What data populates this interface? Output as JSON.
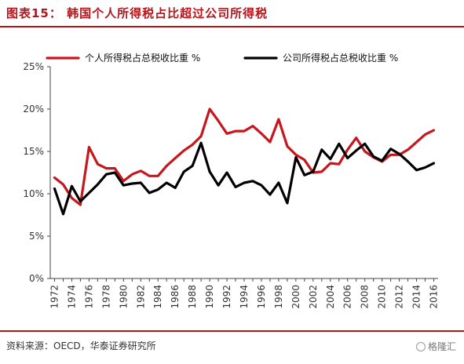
{
  "header": {
    "title": "图表15：  韩国个人所得税占比超过公司所得税"
  },
  "footer": {
    "source": "资料来源：OECD，华泰证券研究所",
    "watermark": "格隆汇"
  },
  "colors": {
    "accent": "#b3151b",
    "series_personal": "#c8161d",
    "series_corporate": "#000000"
  },
  "chart_data": {
    "type": "line",
    "title": "",
    "xlabel": "",
    "ylabel": "",
    "x": [
      1972,
      1973,
      1974,
      1975,
      1976,
      1977,
      1978,
      1979,
      1980,
      1981,
      1982,
      1983,
      1984,
      1985,
      1986,
      1987,
      1988,
      1989,
      1990,
      1991,
      1992,
      1993,
      1994,
      1995,
      1996,
      1997,
      1998,
      1999,
      2000,
      2001,
      2002,
      2003,
      2004,
      2005,
      2006,
      2007,
      2008,
      2009,
      2010,
      2011,
      2012,
      2013,
      2014,
      2015,
      2016
    ],
    "x_tick_labels": [
      "1972",
      "1974",
      "1976",
      "1978",
      "1980",
      "1982",
      "1984",
      "1986",
      "1988",
      "1990",
      "1992",
      "1994",
      "1996",
      "1998",
      "2000",
      "2002",
      "2004",
      "2006",
      "2008",
      "2010",
      "2012",
      "2014",
      "2016"
    ],
    "y_tick_labels": [
      "0%",
      "5%",
      "10%",
      "15%",
      "20%",
      "25%"
    ],
    "ylim": [
      0,
      25
    ],
    "xlim": [
      1971.5,
      2016.5
    ],
    "grid": false,
    "legend_position": "top",
    "series": [
      {
        "name": "个人所得税占总税收比重  %",
        "color": "#c8161d",
        "values": [
          11.9,
          11.1,
          9.5,
          8.7,
          15.5,
          13.5,
          13.0,
          13.0,
          11.5,
          12.3,
          12.7,
          12.1,
          12.1,
          13.3,
          14.2,
          15.1,
          15.8,
          16.8,
          20.0,
          18.6,
          17.1,
          17.4,
          17.4,
          18.0,
          17.1,
          16.1,
          18.8,
          15.6,
          14.6,
          14.0,
          12.5,
          12.6,
          13.6,
          13.5,
          15.2,
          16.6,
          15.0,
          14.3,
          13.8,
          14.6,
          14.6,
          15.2,
          16.1,
          17.0,
          17.5
        ]
      },
      {
        "name": "公司所得税占总税收比重  %",
        "color": "#000000",
        "values": [
          10.6,
          7.6,
          10.9,
          9.1,
          10.1,
          11.1,
          12.3,
          12.5,
          11.0,
          11.2,
          11.3,
          10.1,
          10.5,
          11.3,
          10.7,
          12.6,
          13.3,
          16.0,
          12.6,
          11.0,
          12.5,
          10.8,
          11.3,
          11.5,
          11.0,
          9.9,
          11.3,
          8.9,
          14.3,
          12.2,
          12.6,
          15.2,
          14.1,
          15.9,
          14.2,
          15.1,
          15.9,
          14.4,
          13.9,
          15.3,
          14.7,
          13.8,
          12.8,
          13.1,
          13.6
        ]
      }
    ]
  }
}
